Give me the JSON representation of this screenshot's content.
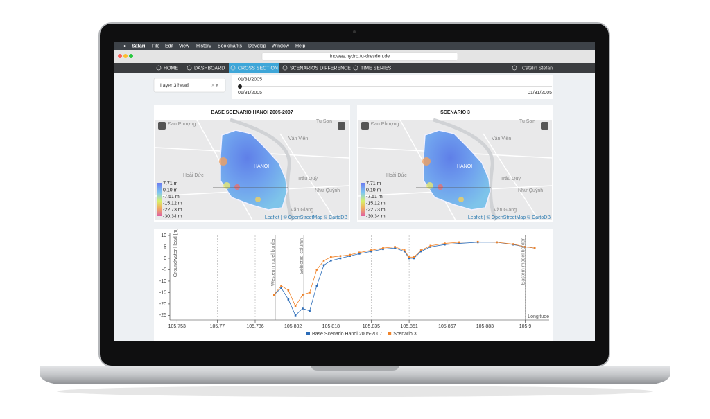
{
  "menubar": {
    "app": "Safari",
    "items": [
      "File",
      "Edit",
      "View",
      "History",
      "Bookmarks",
      "Develop",
      "Window",
      "Help"
    ]
  },
  "browser": {
    "url": "inowas.hydro.tu-dresden.de"
  },
  "nav": {
    "items": [
      "HOME",
      "DASHBOARD",
      "CROSS SECTION",
      "SCENARIOS DIFFERENCE",
      "TIME SERIES"
    ],
    "active": 2,
    "user": "Catalin Stefan"
  },
  "controls": {
    "layer": "Layer 3 head",
    "date_selected": "01/31/2005",
    "date_start": "01/31/2005",
    "date_end": "01/31/2005"
  },
  "maps": [
    {
      "title": "BASE SCENARIO HANOI 2005-2007",
      "legend": [
        "7.71 m",
        "0.10 m",
        "-7.51 m",
        "-15.12 m",
        "-22.73 m",
        "-30.34 m"
      ],
      "places": [
        "Đan Phượng",
        "Tu Sơn",
        "Văn Viên",
        "HANOI",
        "Hoài Đức",
        "Trâu Quỳ",
        "Như Quỳnh",
        "Văn Giang"
      ],
      "attribution": "Leaflet | © OpenStreetMap © CartoDB"
    },
    {
      "title": "SCENARIO 3",
      "legend": [
        "7.71 m",
        "0.10 m",
        "-7.51 m",
        "-15.12 m",
        "-22.73 m",
        "-30.34 m"
      ],
      "places": [
        "Đan Phượng",
        "Tu Sơn",
        "Văn Viên",
        "HANOI",
        "Hoài Đức",
        "Trâu Quỳ",
        "Như Quỳnh",
        "Văn Giang"
      ],
      "attribution": "Leaflet | © OpenStreetMap © CartoDB"
    }
  ],
  "chart": {
    "type": "line",
    "x_label": "Longitude",
    "y_label": "Groundwater Head [m]",
    "x": [
      105.794,
      105.797,
      105.8,
      105.803,
      105.806,
      105.809,
      105.812,
      105.815,
      105.818,
      105.822,
      105.826,
      105.83,
      105.835,
      105.84,
      105.845,
      105.849,
      105.851,
      105.853,
      105.856,
      105.86,
      105.866,
      105.872,
      105.88,
      105.888,
      105.895,
      105.9,
      105.904
    ],
    "series": [
      {
        "name": "Base Scenario Hanoi 2005-2007",
        "color": "#2b6cb8",
        "values": [
          -16,
          -13,
          -18,
          -25,
          -22,
          -23,
          -12,
          -3,
          -1,
          0,
          1,
          2,
          3,
          4,
          4.5,
          3,
          0,
          0,
          3,
          5,
          6,
          6.5,
          7,
          7,
          6,
          5,
          4.5
        ]
      },
      {
        "name": "Scenario 3",
        "color": "#f0832a",
        "values": [
          -16,
          -12,
          -14,
          -21,
          -16,
          -15,
          -5,
          -1,
          0.5,
          1,
          1.5,
          2.5,
          3.5,
          4.5,
          5,
          3.5,
          0.5,
          0.5,
          3.5,
          5.5,
          6.5,
          7,
          7.2,
          7,
          6.2,
          5,
          4.5
        ]
      }
    ],
    "xlim": [
      105.75,
      105.906
    ],
    "ylim": [
      -27,
      10
    ],
    "xticks": [
      105.753,
      105.77,
      105.786,
      105.802,
      105.818,
      105.835,
      105.851,
      105.867,
      105.883,
      105.9
    ],
    "yticks": [
      10,
      5,
      0,
      -5,
      -10,
      -15,
      -20,
      -25
    ],
    "grid": true,
    "annotations": [
      {
        "x": 105.7945,
        "label": "Western model border"
      },
      {
        "x": 105.8065,
        "label": "Selected column"
      },
      {
        "x": 105.9,
        "label": "Eastern model border"
      }
    ]
  }
}
